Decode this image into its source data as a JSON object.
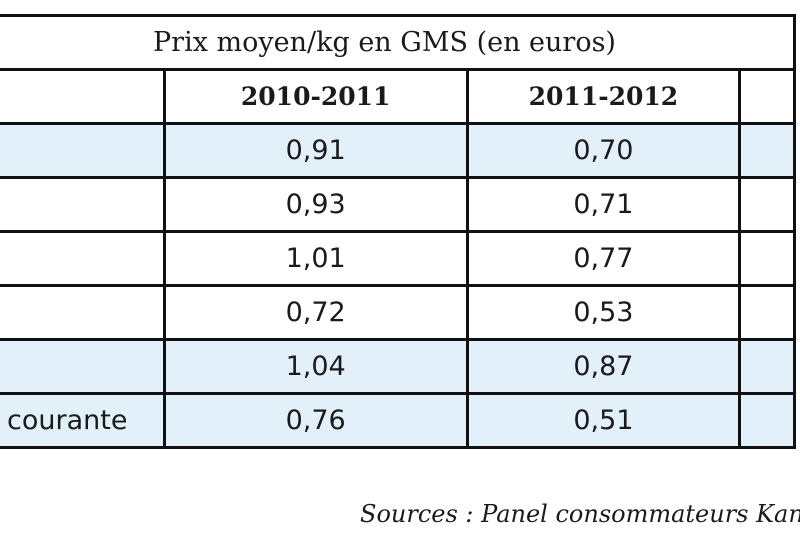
{
  "table": {
    "title": "Prix moyen/kg en GMS (en euros)",
    "columns": [
      "",
      "2010-2011",
      "2011-2012",
      ""
    ],
    "rows": [
      {
        "label": "",
        "v1": "0,91",
        "v2": "0,70"
      },
      {
        "label": "",
        "v1": "0,93",
        "v2": "0,71"
      },
      {
        "label": "",
        "v1": "1,01",
        "v2": "0,77"
      },
      {
        "label": "",
        "v1": "0,72",
        "v2": "0,53"
      },
      {
        "label": "",
        "v1": "1,04",
        "v2": "0,87"
      },
      {
        "label": "courante",
        "v1": "0,76",
        "v2": "0,51"
      }
    ],
    "row_shading": [
      "shaded",
      "plain",
      "plain",
      "plain",
      "shaded",
      "shaded"
    ]
  },
  "source_note": "Sources : Panel consommateurs Kan"
}
